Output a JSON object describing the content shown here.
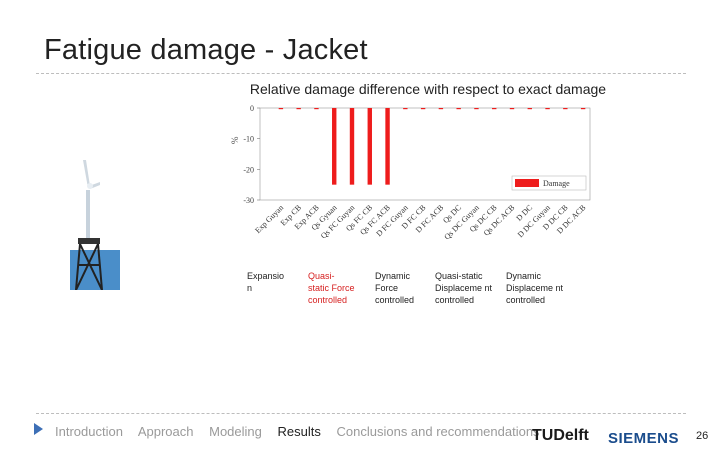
{
  "slide": {
    "title": "Fatigue damage - Jacket",
    "subtitle": "Relative damage difference with respect to exact damage",
    "page_number": "26"
  },
  "categories_groups": [
    {
      "label": "Expansio n",
      "color": "#222222"
    },
    {
      "label": "Quasi- static Force controlled",
      "color": "#d62020"
    },
    {
      "label": "Dynamic Force controlled",
      "color": "#222222"
    },
    {
      "label": "Quasi-static Displaceme nt controlled",
      "color": "#222222"
    },
    {
      "label": "Dynamic Displaceme nt controlled",
      "color": "#222222"
    }
  ],
  "chart_data": {
    "type": "bar",
    "ylabel": "%",
    "ylim": [
      -30,
      0
    ],
    "yticks": [
      "0",
      "-10",
      "-20",
      "-30"
    ],
    "categories": [
      "Exp Guyan",
      "Exp CB",
      "Exp ACB",
      "Qs Gyuan",
      "Qs FC Guyan",
      "Qs FC CB",
      "Qs FC ACB",
      "D FC Guyan",
      "D FC CB",
      "D FC ACB",
      "Qs DC",
      "Qs DC Guyan",
      "Qs DC CB",
      "Qs DC ACB",
      "D DC",
      "D DC Guyan",
      "D DC CB",
      "D DC ACB"
    ],
    "series": [
      {
        "name": "Damage",
        "color": "#ee1c1c",
        "values": [
          0,
          -0.3,
          -0.3,
          -25,
          -25,
          -25,
          -25,
          0,
          0,
          0,
          0,
          -0.2,
          0,
          -0.3,
          0,
          -0.3,
          -0.3,
          0
        ]
      }
    ]
  },
  "footer": {
    "items": [
      "Introduction",
      "Approach",
      "Modeling",
      "Results",
      "Conclusions and recommendations"
    ],
    "active": "Results"
  },
  "logos": {
    "tudelft": "TUDelft",
    "siemens": "SIEMENS"
  }
}
